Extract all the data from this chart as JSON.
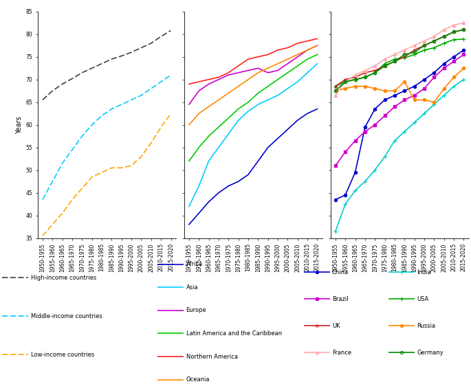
{
  "periods": [
    "1950-1955",
    "1955-1960",
    "1960-1965",
    "1965-1970",
    "1970-1975",
    "1975-1980",
    "1980-1985",
    "1985-1990",
    "1990-1995",
    "1995-2000",
    "2000-2005",
    "2005-2010",
    "2010-2015",
    "2015-2020"
  ],
  "panel1": {
    "high_income": [
      65.5,
      67.5,
      69.0,
      70.2,
      71.5,
      72.5,
      73.5,
      74.5,
      75.2,
      76.0,
      77.0,
      78.0,
      79.5,
      80.8
    ],
    "middle_income": [
      43.5,
      47.5,
      51.5,
      54.5,
      57.5,
      60.0,
      62.0,
      63.5,
      64.5,
      65.5,
      66.5,
      68.0,
      69.5,
      71.0
    ],
    "low_income": [
      35.5,
      38.0,
      40.5,
      43.5,
      46.0,
      48.5,
      49.5,
      50.5,
      50.5,
      51.0,
      53.0,
      56.0,
      59.5,
      62.5
    ]
  },
  "panel2": {
    "africa": [
      38.0,
      40.5,
      43.0,
      45.0,
      46.5,
      47.5,
      49.0,
      52.0,
      55.0,
      57.0,
      59.0,
      61.0,
      62.5,
      63.5
    ],
    "asia": [
      42.0,
      46.5,
      52.0,
      55.0,
      58.0,
      61.0,
      63.0,
      64.5,
      65.5,
      66.5,
      68.0,
      69.5,
      71.5,
      73.5
    ],
    "europe": [
      64.5,
      67.5,
      69.0,
      70.0,
      71.0,
      71.5,
      72.0,
      72.5,
      71.5,
      72.0,
      73.5,
      75.0,
      76.5,
      77.5
    ],
    "latin_america": [
      52.0,
      55.0,
      57.5,
      59.5,
      61.5,
      63.5,
      65.0,
      67.0,
      68.5,
      70.0,
      71.5,
      73.0,
      74.5,
      75.5
    ],
    "northern_america": [
      69.0,
      69.5,
      70.0,
      70.5,
      71.5,
      73.0,
      74.5,
      75.0,
      75.5,
      76.5,
      77.0,
      78.0,
      78.5,
      79.0
    ],
    "oceania": [
      60.0,
      62.5,
      64.0,
      65.5,
      67.0,
      68.5,
      70.0,
      71.5,
      72.5,
      73.5,
      74.5,
      75.5,
      76.5,
      77.5
    ]
  },
  "panel3": {
    "china": [
      43.5,
      44.5,
      49.5,
      59.5,
      63.5,
      65.5,
      66.5,
      67.5,
      68.5,
      70.0,
      71.5,
      73.5,
      75.0,
      76.5
    ],
    "india": [
      36.5,
      42.5,
      45.5,
      47.5,
      50.0,
      53.0,
      56.5,
      58.5,
      60.5,
      62.5,
      64.5,
      66.5,
      68.5,
      70.0
    ],
    "brazil": [
      51.0,
      54.0,
      56.5,
      58.5,
      60.0,
      62.0,
      64.0,
      65.5,
      66.5,
      68.0,
      70.5,
      72.5,
      74.0,
      75.5
    ],
    "usa": [
      68.5,
      69.5,
      70.0,
      70.5,
      71.5,
      73.5,
      74.5,
      74.8,
      75.5,
      76.5,
      77.0,
      78.0,
      78.8,
      78.9
    ],
    "uk": [
      68.5,
      70.0,
      70.5,
      71.5,
      72.0,
      73.0,
      74.0,
      75.0,
      76.5,
      77.5,
      78.5,
      79.5,
      80.5,
      81.0
    ],
    "russia": [
      67.5,
      68.0,
      68.5,
      68.5,
      68.0,
      67.5,
      67.5,
      69.5,
      65.5,
      65.5,
      65.0,
      68.0,
      70.5,
      72.5
    ],
    "france": [
      66.5,
      69.5,
      71.0,
      72.0,
      73.0,
      74.5,
      75.5,
      76.5,
      77.5,
      78.5,
      79.5,
      81.0,
      82.0,
      82.5
    ],
    "germany": [
      67.5,
      69.5,
      70.0,
      70.5,
      71.5,
      73.0,
      74.0,
      75.5,
      76.0,
      77.5,
      78.5,
      79.5,
      80.5,
      81.0
    ]
  },
  "colors": {
    "high_income": "#404040",
    "middle_income": "#00ccff",
    "low_income": "#ffa500",
    "africa": "#0000cd",
    "asia": "#00ccff",
    "europe": "#cc00cc",
    "latin_america": "#00cc00",
    "northern_america": "#ff2222",
    "oceania": "#ff8800",
    "china": "#0000cd",
    "india": "#00cccc",
    "brazil": "#cc00cc",
    "usa": "#00aa00",
    "uk": "#cc2222",
    "russia": "#ff8800",
    "france": "#ffaaaa",
    "germany": "#008800"
  }
}
